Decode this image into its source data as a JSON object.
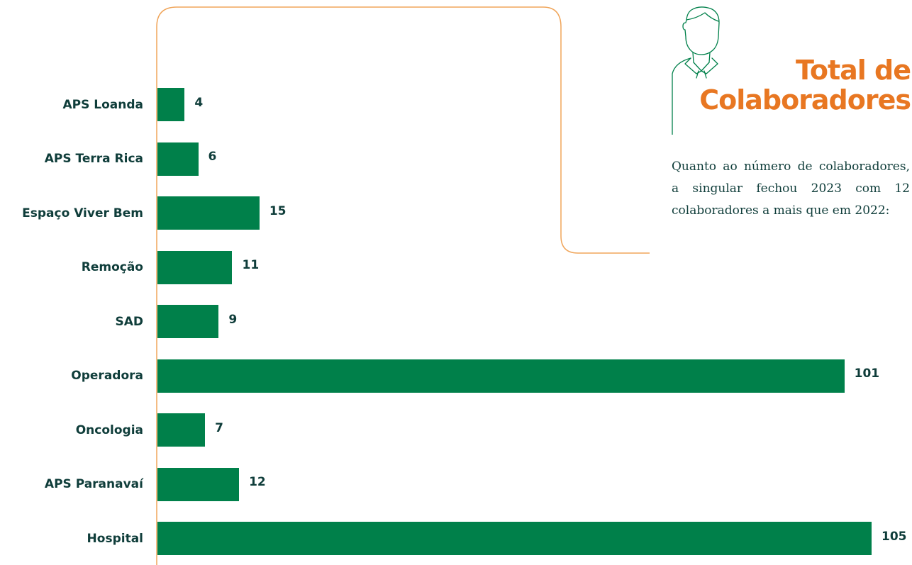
{
  "heading": {
    "line1": "Total de",
    "line2": "Colaboradores"
  },
  "description": "Quanto ao número de colaboradores, a singular fechou 2023 com 12 colaboradores a mais que em 2022:",
  "colors": {
    "bar": "#00804a",
    "accent": "#e87722",
    "text": "#0f3d3a",
    "line": "#f0a55a"
  },
  "icons": [
    "person-with-tie-icon"
  ],
  "chart_data": {
    "type": "bar",
    "orientation": "horizontal",
    "title": "",
    "xlabel": "",
    "ylabel": "",
    "categories": [
      "APS Loanda",
      "APS Terra Rica",
      "Espaço Viver Bem",
      "Remoção",
      "SAD",
      "Operadora",
      "Oncologia",
      "APS Paranavaí",
      "Hospital"
    ],
    "values": [
      4,
      6,
      15,
      11,
      9,
      101,
      7,
      12,
      105
    ],
    "xlim": [
      0,
      105
    ],
    "grid": false,
    "legend": "none"
  }
}
